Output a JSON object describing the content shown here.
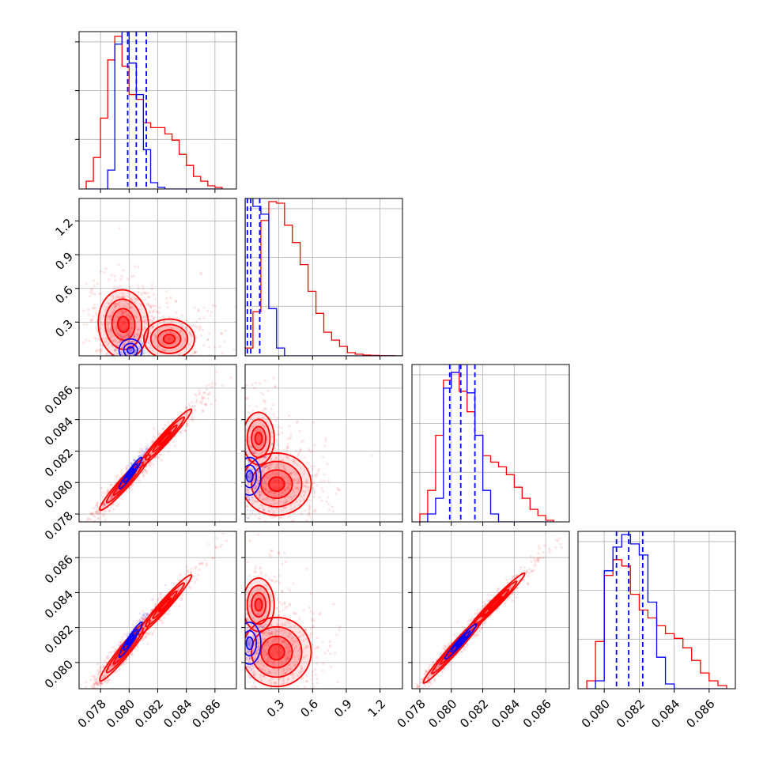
{
  "chart_data": {
    "type": "corner",
    "grid": true,
    "colors": {
      "red": "#ff0000",
      "blue": "#0000ff"
    },
    "parameters": [
      {
        "range": [
          0.0765,
          0.0875
        ],
        "ticks": [
          0.078,
          0.08,
          0.082,
          0.084,
          0.086
        ],
        "tick_labels": [
          "0.078",
          "0.080",
          "0.082",
          "0.084",
          "0.086"
        ]
      },
      {
        "range": [
          0.0,
          1.4
        ],
        "ticks": [
          0.3,
          0.6,
          0.9,
          1.2
        ],
        "tick_labels": [
          "0.3",
          "0.6",
          "0.9",
          "1.2"
        ]
      },
      {
        "range": [
          0.0775,
          0.0875
        ],
        "ticks": [
          0.078,
          0.08,
          0.082,
          0.084,
          0.086
        ],
        "tick_labels": [
          "0.078",
          "0.080",
          "0.082",
          "0.084",
          "0.086"
        ]
      },
      {
        "range": [
          0.0785,
          0.0875
        ],
        "ticks": [
          0.08,
          0.082,
          0.084,
          0.086
        ],
        "tick_labels": [
          "0.080",
          "0.082",
          "0.084",
          "0.086"
        ]
      }
    ],
    "series": [
      {
        "color": "red",
        "quantiles": [
          null,
          null,
          null,
          null
        ]
      },
      {
        "color": "blue",
        "quantiles": [
          [
            0.0799,
            0.0805,
            0.0812
          ],
          [
            0.02,
            0.05,
            0.13
          ],
          [
            0.0799,
            0.0806,
            0.0815
          ],
          [
            0.0807,
            0.0814,
            0.0822
          ]
        ]
      }
    ],
    "histograms": [
      {
        "bin_edges": [
          0.077,
          0.0775,
          0.078,
          0.0785,
          0.079,
          0.0795,
          0.08,
          0.0805,
          0.081,
          0.0815,
          0.082,
          0.0825,
          0.083,
          0.0835,
          0.084,
          0.0845,
          0.085,
          0.0855,
          0.086,
          0.0865
        ],
        "red": [
          0.05,
          0.2,
          0.45,
          0.82,
          0.97,
          0.78,
          0.6,
          0.57,
          0.42,
          0.39,
          0.39,
          0.35,
          0.31,
          0.22,
          0.15,
          0.08,
          0.05,
          0.02,
          0.01
        ],
        "blue": [
          0,
          0,
          0,
          0.12,
          0.92,
          1.0,
          0.8,
          0.6,
          0.25,
          0.04,
          0.01,
          0,
          0,
          0,
          0,
          0,
          0,
          0,
          0
        ]
      },
      {
        "bin_edges": [
          0.0,
          0.07,
          0.14,
          0.21,
          0.28,
          0.35,
          0.42,
          0.49,
          0.56,
          0.63,
          0.7,
          0.77,
          0.84,
          0.91,
          0.98,
          1.05,
          1.12,
          1.19,
          1.26,
          1.33,
          1.4
        ],
        "red": [
          0.05,
          0.28,
          0.86,
          0.98,
          0.97,
          0.83,
          0.72,
          0.58,
          0.41,
          0.27,
          0.15,
          0.1,
          0.06,
          0.02,
          0.01,
          0.005,
          0.003,
          0.002,
          0.001,
          0.0
        ],
        "blue": [
          1.0,
          0.95,
          0.9,
          0.3,
          0.05,
          0.0,
          0,
          0,
          0,
          0,
          0,
          0,
          0,
          0,
          0,
          0,
          0,
          0,
          0,
          0
        ]
      },
      {
        "bin_edges": [
          0.078,
          0.0785,
          0.079,
          0.0795,
          0.08,
          0.0805,
          0.081,
          0.0815,
          0.082,
          0.0825,
          0.083,
          0.0835,
          0.084,
          0.0845,
          0.085,
          0.0855,
          0.086,
          0.0865
        ],
        "red": [
          0.05,
          0.2,
          0.55,
          0.9,
          0.95,
          0.83,
          0.7,
          0.55,
          0.42,
          0.38,
          0.35,
          0.3,
          0.22,
          0.15,
          0.08,
          0.04,
          0.01
        ],
        "blue": [
          0,
          0.05,
          0.15,
          0.85,
          0.95,
          1.0,
          0.82,
          0.55,
          0.2,
          0.05,
          0.0,
          0,
          0,
          0,
          0,
          0,
          0
        ]
      },
      {
        "bin_edges": [
          0.079,
          0.0795,
          0.08,
          0.0805,
          0.081,
          0.0815,
          0.082,
          0.0825,
          0.083,
          0.0835,
          0.084,
          0.0845,
          0.085,
          0.0855,
          0.086,
          0.0865,
          0.087
        ],
        "red": [
          0.05,
          0.3,
          0.72,
          0.82,
          0.78,
          0.6,
          0.5,
          0.45,
          0.4,
          0.35,
          0.32,
          0.26,
          0.18,
          0.1,
          0.05,
          0.02
        ],
        "blue": [
          0,
          0.05,
          0.75,
          0.9,
          0.98,
          0.92,
          0.85,
          0.55,
          0.2,
          0.03,
          0,
          0,
          0,
          0,
          0,
          0
        ]
      }
    ],
    "densities": [
      {
        "row": 1,
        "col": 0,
        "red": [
          {
            "x": 0.0796,
            "y": 0.28,
            "sx": 0.0008,
            "sy": 0.14,
            "rho": -0.05,
            "w": 1.0
          },
          {
            "x": 0.0828,
            "y": 0.15,
            "sx": 0.0012,
            "sy": 0.12,
            "rho": 0.0,
            "w": 0.45
          }
        ],
        "blue": [
          {
            "x": 0.0801,
            "y": 0.05,
            "sx": 0.0004,
            "sy": 0.05,
            "rho": 0.0,
            "w": 1.0
          }
        ]
      },
      {
        "row": 2,
        "col": 0,
        "red": [
          {
            "x": 0.0797,
            "y": 0.08,
            "sx": 0.0008,
            "sy": 0.0008,
            "rho": 0.96,
            "w": 1.0
          },
          {
            "x": 0.0825,
            "y": 0.0828,
            "sx": 0.0012,
            "sy": 0.0012,
            "rho": 0.97,
            "w": 0.5
          }
        ],
        "blue": [
          {
            "x": 0.0801,
            "y": 0.0806,
            "sx": 0.0004,
            "sy": 0.0005,
            "rho": 0.95,
            "w": 1.0
          }
        ]
      },
      {
        "row": 2,
        "col": 1,
        "red": [
          {
            "x": 0.28,
            "y": 0.0799,
            "sx": 0.14,
            "sy": 0.0009,
            "rho": 0.0,
            "w": 1.0
          },
          {
            "x": 0.12,
            "y": 0.0828,
            "sx": 0.1,
            "sy": 0.0012,
            "rho": 0.0,
            "w": 0.4
          }
        ],
        "blue": [
          {
            "x": 0.04,
            "y": 0.0804,
            "sx": 0.05,
            "sy": 0.0006,
            "rho": 0.0,
            "w": 1.0
          }
        ]
      },
      {
        "row": 3,
        "col": 0,
        "red": [
          {
            "x": 0.0797,
            "y": 0.0807,
            "sx": 0.0008,
            "sy": 0.0008,
            "rho": 0.96,
            "w": 1.0
          },
          {
            "x": 0.0825,
            "y": 0.0833,
            "sx": 0.0012,
            "sy": 0.0011,
            "rho": 0.97,
            "w": 0.5
          }
        ],
        "blue": [
          {
            "x": 0.0801,
            "y": 0.0813,
            "sx": 0.0004,
            "sy": 0.0005,
            "rho": 0.95,
            "w": 1.0
          }
        ]
      },
      {
        "row": 3,
        "col": 1,
        "red": [
          {
            "x": 0.28,
            "y": 0.0806,
            "sx": 0.14,
            "sy": 0.0009,
            "rho": 0.0,
            "w": 1.0
          },
          {
            "x": 0.12,
            "y": 0.0833,
            "sx": 0.1,
            "sy": 0.0011,
            "rho": 0.0,
            "w": 0.4
          }
        ],
        "blue": [
          {
            "x": 0.04,
            "y": 0.0811,
            "sx": 0.05,
            "sy": 0.0006,
            "rho": 0.0,
            "w": 1.0
          }
        ]
      },
      {
        "row": 3,
        "col": 2,
        "red": [
          {
            "x": 0.0802,
            "y": 0.0808,
            "sx": 0.0009,
            "sy": 0.0009,
            "rho": 0.98,
            "w": 1.0
          },
          {
            "x": 0.0828,
            "y": 0.0834,
            "sx": 0.0012,
            "sy": 0.0011,
            "rho": 0.98,
            "w": 0.5
          }
        ],
        "blue": [
          {
            "x": 0.0806,
            "y": 0.0812,
            "sx": 0.0005,
            "sy": 0.0005,
            "rho": 0.97,
            "w": 1.0
          }
        ]
      }
    ]
  }
}
